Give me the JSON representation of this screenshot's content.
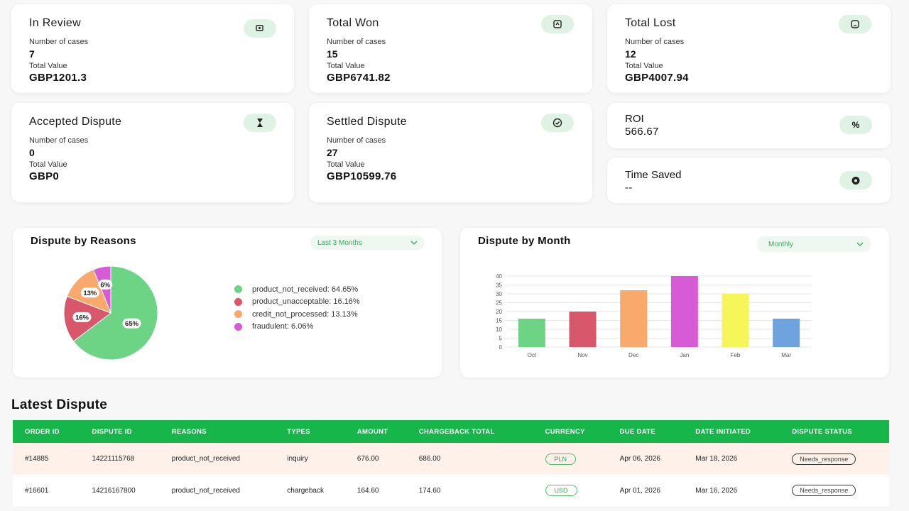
{
  "stats": [
    {
      "title": "In Review",
      "count_label": "Number of cases",
      "count": "7",
      "value_label": "Total Value",
      "value": "GBP1201.3",
      "icon": "money-hand-icon"
    },
    {
      "title": "Total Won",
      "count_label": "Number of cases",
      "count": "15",
      "value_label": "Total Value",
      "value": "GBP6741.82",
      "icon": "trophy-icon"
    },
    {
      "title": "Total Lost",
      "count_label": "Number of cases",
      "count": "12",
      "value_label": "Total Value",
      "value": "GBP4007.94",
      "icon": "sad-icon"
    },
    {
      "title": "Accepted Dispute",
      "count_label": "Number of cases",
      "count": "0",
      "value_label": "Total Value",
      "value": "GBP0",
      "icon": "hourglass-icon"
    },
    {
      "title": "Settled Dispute",
      "count_label": "Number of cases",
      "count": "27",
      "value_label": "Total Value",
      "value": "GBP10599.76",
      "icon": "check-circle-icon"
    }
  ],
  "roi": {
    "title": "ROI",
    "value": "566.67",
    "icon": "percent-icon"
  },
  "time_saved": {
    "title": "Time Saved",
    "value": "--",
    "icon": "timer-icon"
  },
  "reasons_panel": {
    "title": "Dispute by Reasons",
    "filter": "Last 3 Months",
    "legend": [
      {
        "label": "product_not_received: 64.65%",
        "color": "#6dd486"
      },
      {
        "label": "product_unacceptable: 16.16%",
        "color": "#d9576a"
      },
      {
        "label": "credit_not_processed: 13.13%",
        "color": "#f8a96b"
      },
      {
        "label": "fraudulent: 6.06%",
        "color": "#d85bd6"
      }
    ],
    "slice_labels": [
      "65%",
      "16%",
      "13%",
      "6%"
    ]
  },
  "month_panel": {
    "title": "Dispute by Month",
    "filter": "Monthly"
  },
  "chart_data": [
    {
      "type": "pie",
      "categories": [
        "product_not_received",
        "product_unacceptable",
        "credit_not_processed",
        "fraudulent"
      ],
      "values": [
        64.65,
        16.16,
        13.13,
        6.06
      ],
      "colors": [
        "#6dd486",
        "#d9576a",
        "#f8a96b",
        "#d85bd6"
      ]
    },
    {
      "type": "bar",
      "categories": [
        "Oct",
        "Nov",
        "Dec",
        "Jan",
        "Feb",
        "Mar"
      ],
      "values": [
        16,
        20,
        32,
        40,
        30,
        16
      ],
      "colors": [
        "#6dd486",
        "#d9576a",
        "#f8a96b",
        "#d85bd6",
        "#f6f65a",
        "#6fa3dd"
      ],
      "ylim": [
        0,
        40
      ],
      "yticks": [
        0,
        5,
        10,
        15,
        20,
        25,
        30,
        35,
        40
      ],
      "grid": true
    }
  ],
  "latest": {
    "title": "Latest Dispute",
    "columns": [
      "ORDER ID",
      "DISPUTE ID",
      "REASONS",
      "TYPES",
      "AMOUNT",
      "CHARGEBACK TOTAL",
      "CURRENCY",
      "DUE DATE",
      "DATE INITIATED",
      "DISPUTE STATUS"
    ],
    "rows": [
      [
        "#14885",
        "14221115768",
        "product_not_received",
        "inquiry",
        "676.00",
        "686.00",
        "PLN",
        "Apr 06, 2026",
        "Mar 18, 2026",
        "Needs_response"
      ],
      [
        "#16601",
        "14216167800",
        "product_not_received",
        "chargeback",
        "164.60",
        "174.60",
        "USD",
        "Apr 01, 2026",
        "Mar 16, 2026",
        "Needs_response"
      ]
    ]
  }
}
